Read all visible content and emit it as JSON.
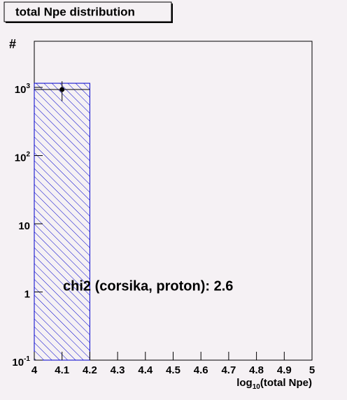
{
  "chart_data": {
    "type": "histogram",
    "title": "total Npe distribution",
    "x_label": "log_10(total Npe)",
    "y_label": "#",
    "annotation": "chi2 (corsika, proton): 2.6",
    "bins": [
      4.0,
      4.2
    ],
    "counts": [
      1150
    ],
    "color": "#0000cc",
    "points": {
      "x": [
        4.1
      ],
      "values": [
        930
      ],
      "errors": [
        300
      ],
      "xerrors": [
        0.1
      ]
    },
    "xlim": [
      4,
      5
    ],
    "ylim": [
      0.1,
      4750
    ],
    "log_y": true,
    "xticks": [
      4,
      4.1,
      4.2,
      4.3,
      4.4,
      4.5,
      4.6,
      4.7,
      4.8,
      4.9,
      5
    ],
    "yticks": [
      {
        "value": 0.1,
        "label": "10^-1"
      },
      1,
      10,
      {
        "value": 100,
        "label": "10^2"
      },
      {
        "value": 1000,
        "label": "10^3"
      }
    ]
  }
}
